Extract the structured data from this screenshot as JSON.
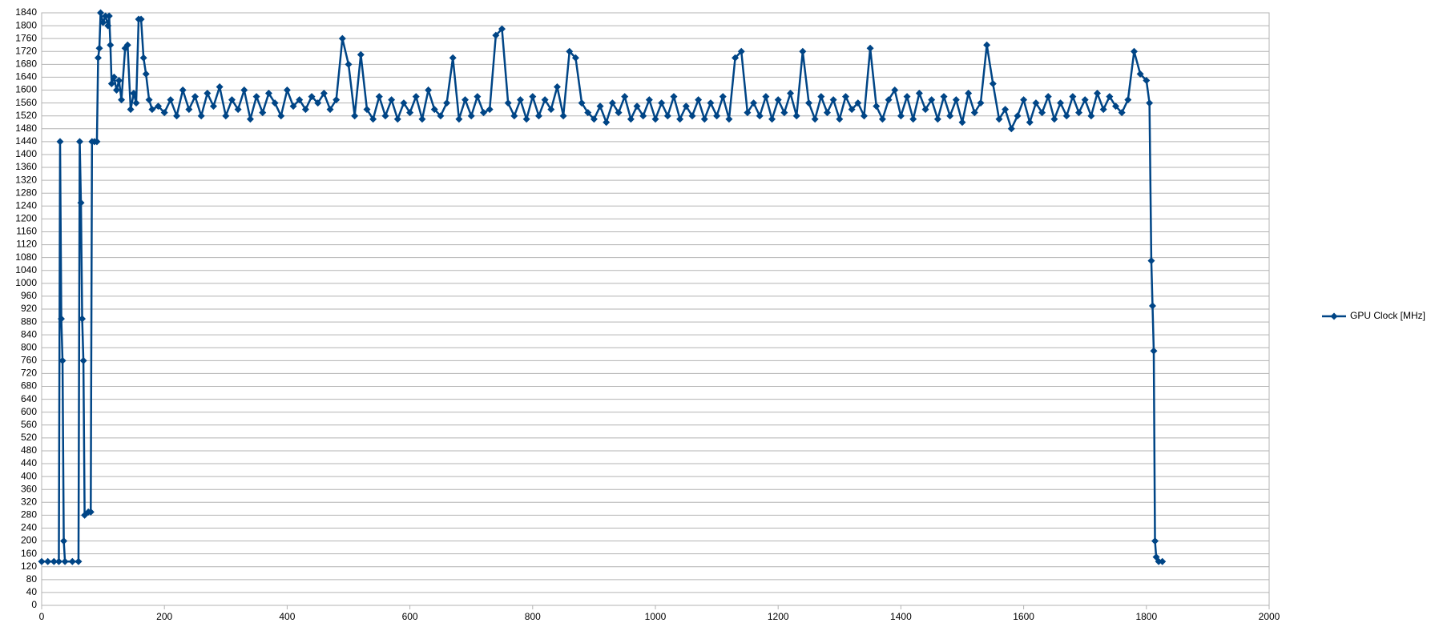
{
  "chart_data": {
    "type": "line",
    "x": [
      0,
      10,
      20,
      28,
      30,
      32,
      34,
      36,
      38,
      50,
      60,
      62,
      64,
      66,
      68,
      70,
      76,
      80,
      82,
      86,
      90,
      92,
      94,
      96,
      100,
      104,
      108,
      110,
      112,
      114,
      118,
      122,
      126,
      130,
      136,
      140,
      145,
      150,
      154,
      158,
      162,
      166,
      170,
      175,
      180,
      190,
      200,
      210,
      220,
      230,
      240,
      250,
      260,
      270,
      280,
      290,
      300,
      310,
      320,
      330,
      340,
      350,
      360,
      370,
      380,
      390,
      400,
      410,
      420,
      430,
      440,
      450,
      460,
      470,
      480,
      490,
      500,
      510,
      520,
      530,
      540,
      550,
      560,
      570,
      580,
      590,
      600,
      610,
      620,
      630,
      640,
      650,
      660,
      670,
      680,
      690,
      700,
      710,
      720,
      730,
      740,
      750,
      760,
      770,
      780,
      790,
      800,
      810,
      820,
      830,
      840,
      850,
      860,
      870,
      880,
      890,
      900,
      910,
      920,
      930,
      940,
      950,
      960,
      970,
      980,
      990,
      1000,
      1010,
      1020,
      1030,
      1040,
      1050,
      1060,
      1070,
      1080,
      1090,
      1100,
      1110,
      1120,
      1130,
      1140,
      1150,
      1160,
      1170,
      1180,
      1190,
      1200,
      1210,
      1220,
      1230,
      1240,
      1250,
      1260,
      1270,
      1280,
      1290,
      1300,
      1310,
      1320,
      1330,
      1340,
      1350,
      1360,
      1370,
      1380,
      1390,
      1400,
      1410,
      1420,
      1430,
      1440,
      1450,
      1460,
      1470,
      1480,
      1490,
      1500,
      1510,
      1520,
      1530,
      1540,
      1550,
      1560,
      1570,
      1580,
      1590,
      1600,
      1610,
      1620,
      1630,
      1640,
      1650,
      1660,
      1670,
      1680,
      1690,
      1700,
      1710,
      1720,
      1730,
      1740,
      1750,
      1760,
      1770,
      1780,
      1790,
      1800,
      1805,
      1808,
      1810,
      1812,
      1814,
      1816,
      1820,
      1826
    ],
    "series": [
      {
        "name": "GPU Clock [MHz]",
        "color": "#004586",
        "values": [
          136,
          136,
          136,
          136,
          1440,
          890,
          760,
          200,
          136,
          136,
          136,
          1440,
          1250,
          890,
          760,
          280,
          290,
          290,
          1440,
          1440,
          1440,
          1700,
          1730,
          1840,
          1810,
          1830,
          1800,
          1830,
          1740,
          1620,
          1640,
          1600,
          1630,
          1570,
          1730,
          1740,
          1540,
          1590,
          1560,
          1820,
          1820,
          1700,
          1650,
          1570,
          1540,
          1550,
          1530,
          1570,
          1520,
          1600,
          1540,
          1580,
          1520,
          1590,
          1550,
          1610,
          1520,
          1570,
          1540,
          1600,
          1510,
          1580,
          1530,
          1590,
          1560,
          1520,
          1600,
          1550,
          1570,
          1540,
          1580,
          1560,
          1590,
          1540,
          1570,
          1760,
          1680,
          1520,
          1710,
          1540,
          1510,
          1580,
          1520,
          1570,
          1510,
          1560,
          1530,
          1580,
          1510,
          1600,
          1540,
          1520,
          1560,
          1700,
          1510,
          1570,
          1520,
          1580,
          1530,
          1540,
          1770,
          1790,
          1560,
          1520,
          1570,
          1510,
          1580,
          1520,
          1570,
          1540,
          1610,
          1520,
          1720,
          1700,
          1560,
          1530,
          1510,
          1550,
          1500,
          1560,
          1530,
          1580,
          1510,
          1550,
          1520,
          1570,
          1510,
          1560,
          1520,
          1580,
          1510,
          1550,
          1520,
          1570,
          1510,
          1560,
          1520,
          1580,
          1510,
          1700,
          1720,
          1530,
          1560,
          1520,
          1580,
          1510,
          1570,
          1530,
          1590,
          1520,
          1720,
          1560,
          1510,
          1580,
          1530,
          1570,
          1510,
          1580,
          1540,
          1560,
          1520,
          1730,
          1550,
          1510,
          1570,
          1600,
          1520,
          1580,
          1510,
          1590,
          1540,
          1570,
          1510,
          1580,
          1520,
          1570,
          1500,
          1590,
          1530,
          1560,
          1740,
          1620,
          1510,
          1540,
          1480,
          1520,
          1570,
          1500,
          1560,
          1530,
          1580,
          1510,
          1560,
          1520,
          1580,
          1530,
          1570,
          1520,
          1590,
          1540,
          1580,
          1550,
          1530,
          1570,
          1720,
          1650,
          1630,
          1560,
          1070,
          930,
          790,
          200,
          150,
          136,
          136
        ]
      }
    ],
    "xlim": [
      0,
      2000
    ],
    "xticks": [
      0,
      200,
      400,
      600,
      800,
      1000,
      1200,
      1400,
      1600,
      1800,
      2000
    ],
    "ylim": [
      0,
      1840
    ],
    "yticks": [
      0,
      40,
      80,
      120,
      160,
      200,
      240,
      280,
      320,
      360,
      400,
      440,
      480,
      520,
      560,
      600,
      640,
      680,
      720,
      760,
      800,
      840,
      880,
      920,
      960,
      1000,
      1040,
      1080,
      1120,
      1160,
      1200,
      1240,
      1280,
      1320,
      1360,
      1400,
      1440,
      1480,
      1520,
      1560,
      1600,
      1640,
      1680,
      1720,
      1760,
      1800,
      1840
    ],
    "grid": true,
    "legend": "right"
  }
}
